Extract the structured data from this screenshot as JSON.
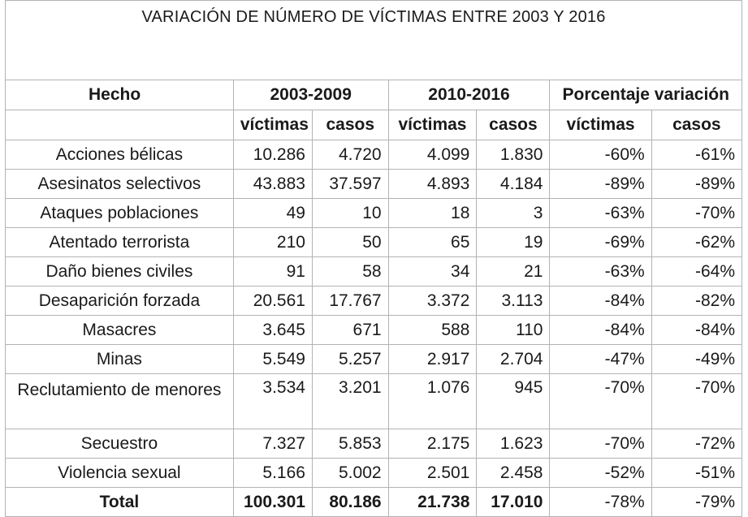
{
  "title": "VARIACIÓN DE NÚMERO DE VÍCTIMAS ENTRE 2003 Y 2016",
  "headers": {
    "hecho": "Hecho",
    "period1": "2003-2009",
    "period2": "2010-2016",
    "variation": "Porcentaje variación",
    "victimas": "víctimas",
    "casos": "casos"
  },
  "rows": [
    {
      "hecho": "Acciones bélicas",
      "v1": "10.286",
      "c1": "4.720",
      "v2": "4.099",
      "c2": "1.830",
      "pv": "-60%",
      "pc": "-61%"
    },
    {
      "hecho": "Asesinatos selectivos",
      "v1": "43.883",
      "c1": "37.597",
      "v2": "4.893",
      "c2": "4.184",
      "pv": "-89%",
      "pc": "-89%"
    },
    {
      "hecho": "Ataques poblaciones",
      "v1": "49",
      "c1": "10",
      "v2": "18",
      "c2": "3",
      "pv": "-63%",
      "pc": "-70%"
    },
    {
      "hecho": "Atentado terrorista",
      "v1": "210",
      "c1": "50",
      "v2": "65",
      "c2": "19",
      "pv": "-69%",
      "pc": "-62%"
    },
    {
      "hecho": "Daño bienes civiles",
      "v1": "91",
      "c1": "58",
      "v2": "34",
      "c2": "21",
      "pv": "-63%",
      "pc": "-64%"
    },
    {
      "hecho": "Desaparición forzada",
      "v1": "20.561",
      "c1": "17.767",
      "v2": "3.372",
      "c2": "3.113",
      "pv": "-84%",
      "pc": "-82%"
    },
    {
      "hecho": "Masacres",
      "v1": "3.645",
      "c1": "671",
      "v2": "588",
      "c2": "110",
      "pv": "-84%",
      "pc": "-84%"
    },
    {
      "hecho": "Minas",
      "v1": "5.549",
      "c1": "5.257",
      "v2": "2.917",
      "c2": "2.704",
      "pv": "-47%",
      "pc": "-49%"
    },
    {
      "hecho": "Reclutamiento de menores",
      "v1": "3.534",
      "c1": "3.201",
      "v2": "1.076",
      "c2": "945",
      "pv": "-70%",
      "pc": "-70%"
    },
    {
      "hecho": "Secuestro",
      "v1": "7.327",
      "c1": "5.853",
      "v2": "2.175",
      "c2": "1.623",
      "pv": "-70%",
      "pc": "-72%"
    },
    {
      "hecho": "Violencia sexual",
      "v1": "5.166",
      "c1": "5.002",
      "v2": "2.501",
      "c2": "2.458",
      "pv": "-52%",
      "pc": "-51%"
    }
  ],
  "total": {
    "hecho": "Total",
    "v1": "100.301",
    "c1": "80.186",
    "v2": "21.738",
    "c2": "17.010",
    "pv": "-78%",
    "pc": "-79%"
  }
}
